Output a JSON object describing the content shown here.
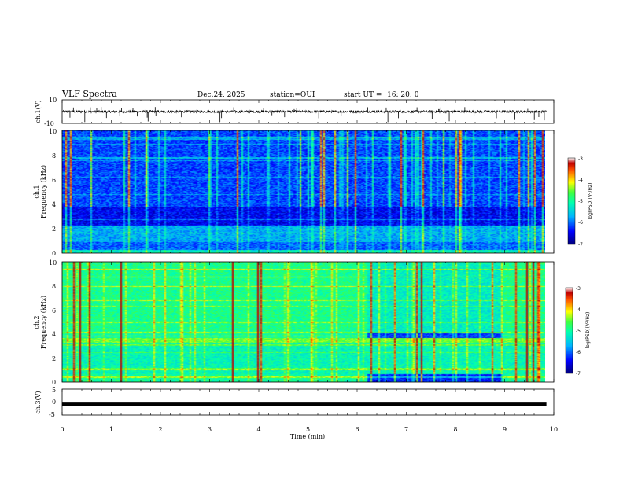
{
  "header": {
    "title": "VLF Spectra",
    "date": "Dec.24, 2025",
    "station": "station=OUI",
    "start_label": "start  UT =",
    "start_time": "16: 20: 0"
  },
  "chart_data": [
    {
      "id": "ch1",
      "type": "line",
      "ylabel": "ch.1(V)",
      "ylim": [
        -10,
        10
      ],
      "ytick_labels": [
        "-10",
        "10"
      ],
      "baseline": 0
    },
    {
      "id": "spec1",
      "type": "heatmap",
      "ylabel_top": "ch.1",
      "ylabel": "Frequency  (kHz)",
      "ylim": [
        0,
        10
      ],
      "yticks": [
        "0",
        "2",
        "4",
        "6",
        "8",
        "10"
      ],
      "colorbar": {
        "label": "log(PSD)(V²/Hz)",
        "range": [
          -7,
          -3
        ],
        "ticks": [
          "-3",
          "-4",
          "-5",
          "-6",
          "-7"
        ]
      }
    },
    {
      "id": "spec2",
      "type": "heatmap",
      "ylabel_top": "ch.2",
      "ylabel": "Frequency  (kHz)",
      "ylim": [
        0,
        10
      ],
      "yticks": [
        "0",
        "2",
        "4",
        "6",
        "8",
        "10"
      ],
      "colorbar": {
        "label": "log(PSD)(V²/Hz)",
        "range": [
          -7,
          -3
        ],
        "ticks": [
          "-3",
          "-4",
          "-5",
          "-6",
          "-7"
        ]
      }
    },
    {
      "id": "ch3",
      "type": "line",
      "ylabel": "ch.3(V)",
      "ylim": [
        -5,
        5
      ],
      "ytick_labels": [
        "5",
        "0",
        "-5"
      ],
      "baseline": -0.8
    }
  ],
  "xaxis": {
    "label": "Time  (min)",
    "range": [
      0,
      10
    ],
    "data_end": 9.85,
    "tick_labels": [
      "0",
      "1",
      "2",
      "3",
      "4",
      "5",
      "6",
      "7",
      "8",
      "9",
      "10"
    ]
  }
}
